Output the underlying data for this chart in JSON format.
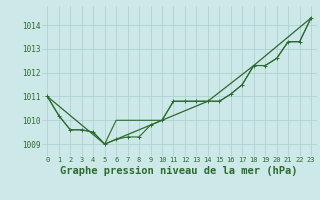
{
  "x": [
    0,
    1,
    2,
    3,
    4,
    5,
    6,
    7,
    8,
    9,
    10,
    11,
    12,
    13,
    14,
    15,
    16,
    17,
    18,
    19,
    20,
    21,
    22,
    23
  ],
  "line1": [
    1011.0,
    1010.2,
    1009.6,
    1009.6,
    1009.5,
    1009.0,
    1009.2,
    1009.3,
    1009.3,
    1009.8,
    1010.0,
    1010.8,
    1010.8,
    1010.8,
    1010.8,
    1010.8,
    1011.1,
    1011.5,
    1012.3,
    1012.3,
    1012.6,
    1013.3,
    1013.3,
    1014.3
  ],
  "line2": [
    1011.0,
    1010.2,
    1009.6,
    1009.6,
    1009.5,
    1009.0,
    1010.0,
    1010.0,
    1010.0,
    1010.0,
    1010.0,
    1010.8,
    1010.8,
    1010.8,
    1010.8,
    1010.8,
    1011.1,
    1011.5,
    1012.3,
    1012.3,
    1012.6,
    1013.3,
    1013.3,
    1014.3
  ],
  "line3_x": [
    0,
    5,
    10,
    14,
    18,
    23
  ],
  "line3_y": [
    1011.0,
    1009.0,
    1010.0,
    1010.8,
    1012.3,
    1014.3
  ],
  "scatter_x": [
    0,
    1,
    2,
    3,
    4,
    5,
    6,
    7,
    8,
    9,
    10,
    11,
    12,
    13,
    14,
    15,
    16,
    17,
    18,
    19,
    20,
    21,
    22,
    23
  ],
  "scatter_y": [
    1011.0,
    1010.2,
    1009.6,
    1009.6,
    1009.5,
    1009.0,
    1009.2,
    1009.3,
    1009.3,
    1009.8,
    1010.0,
    1010.8,
    1010.8,
    1010.8,
    1010.8,
    1010.8,
    1011.1,
    1011.5,
    1012.3,
    1012.3,
    1012.6,
    1013.3,
    1013.3,
    1014.3
  ],
  "line_color": "#2d6a2d",
  "bg_color": "#cce8e8",
  "grid_color": "#aacece",
  "ylabel_ticks": [
    1009,
    1010,
    1011,
    1012,
    1013,
    1014
  ],
  "xlabel": "Graphe pression niveau de la mer (hPa)",
  "ylim": [
    1008.5,
    1014.8
  ],
  "xlim": [
    -0.5,
    23.5
  ],
  "tick_fontsize": 5.0,
  "xlabel_fontsize": 7.5
}
